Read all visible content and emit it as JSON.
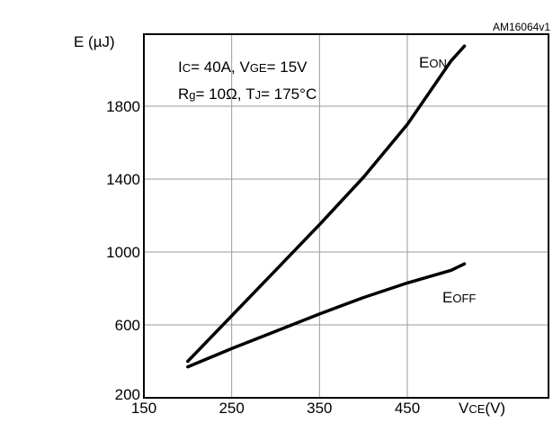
{
  "chart_data": {
    "type": "line",
    "figure_id": "AM16064v1",
    "ylabel": "E (µJ)",
    "xlabel": {
      "main": "V",
      "sub": "CE",
      "unit": "(V)"
    },
    "conditions": [
      {
        "parts": [
          {
            "t": "I"
          },
          {
            "t": "C",
            "sub": true
          },
          {
            "t": "= 40A, V"
          },
          {
            "t": "GE",
            "sub": true
          },
          {
            "t": "= 15V"
          }
        ]
      },
      {
        "parts": [
          {
            "t": "R"
          },
          {
            "t": "g",
            "sub": true
          },
          {
            "t": "= 10Ω, T"
          },
          {
            "t": "J",
            "sub": true
          },
          {
            "t": "= 175°C"
          }
        ]
      }
    ],
    "xlim": [
      150,
      525
    ],
    "ylim": [
      200,
      2000
    ],
    "xticks": [
      150,
      250,
      350,
      450
    ],
    "yticks": [
      200,
      600,
      1000,
      1400,
      1800
    ],
    "xtick_labels": [
      "150",
      "250",
      "350",
      "450"
    ],
    "ytick_labels": [
      "200",
      "600",
      "1000",
      "1400",
      "1800"
    ],
    "grid": true,
    "series": [
      {
        "name": {
          "main": "E",
          "sub": "ON"
        },
        "color": "#000000",
        "x": [
          200,
          250,
          300,
          350,
          400,
          450,
          500,
          515
        ],
        "y": [
          400,
          650,
          900,
          1150,
          1410,
          1700,
          2050,
          2130
        ]
      },
      {
        "name": {
          "main": "E",
          "sub": "OFF"
        },
        "color": "#000000",
        "x": [
          200,
          250,
          300,
          350,
          400,
          450,
          500,
          515
        ],
        "y": [
          370,
          470,
          565,
          660,
          750,
          830,
          900,
          935
        ]
      }
    ]
  }
}
